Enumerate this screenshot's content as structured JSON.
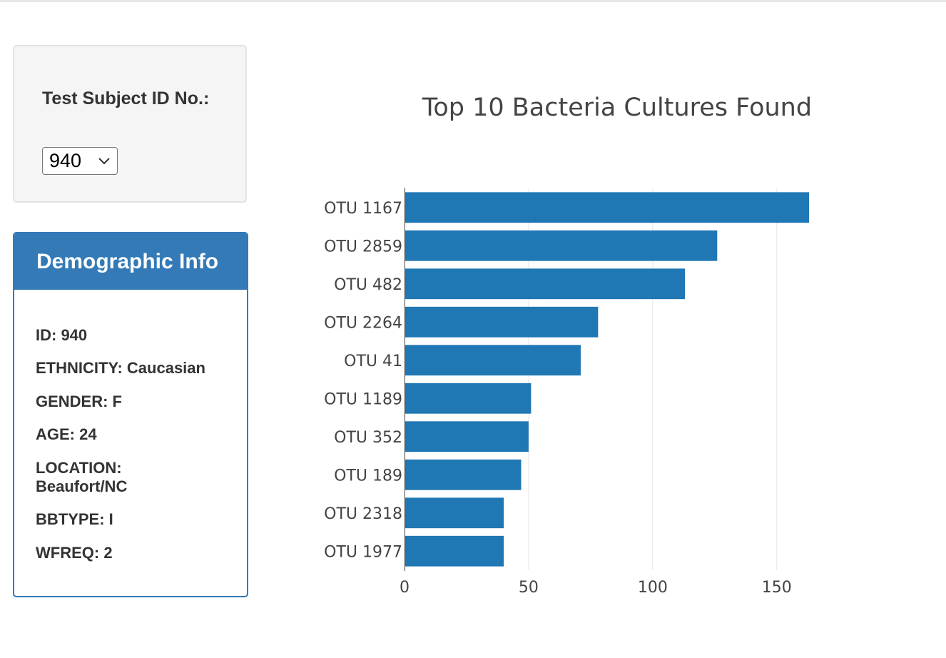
{
  "selector": {
    "label": "Test Subject ID No.:",
    "selected_value": "940"
  },
  "demographics": {
    "title": "Demographic Info",
    "lines": [
      "ID: 940",
      "ETHNICITY: Caucasian",
      "GENDER: F",
      "AGE: 24",
      "LOCATION: Beaufort/NC",
      "BBTYPE: I",
      "WFREQ: 2"
    ]
  },
  "chart_data": {
    "type": "bar",
    "orientation": "horizontal",
    "title": "Top 10 Bacteria Cultures Found",
    "categories": [
      "OTU 1167",
      "OTU 2859",
      "OTU 482",
      "OTU 2264",
      "OTU 41",
      "OTU 1189",
      "OTU 352",
      "OTU 189",
      "OTU 2318",
      "OTU 1977"
    ],
    "values": [
      163,
      126,
      113,
      78,
      71,
      51,
      50,
      47,
      40,
      40
    ],
    "xlim": [
      0,
      163
    ],
    "xticks": [
      0,
      50,
      100,
      150
    ],
    "grid": true,
    "color": "#1f77b4"
  },
  "colors": {
    "panel_primary": "#337ab7",
    "bar": "#1f77b4"
  }
}
